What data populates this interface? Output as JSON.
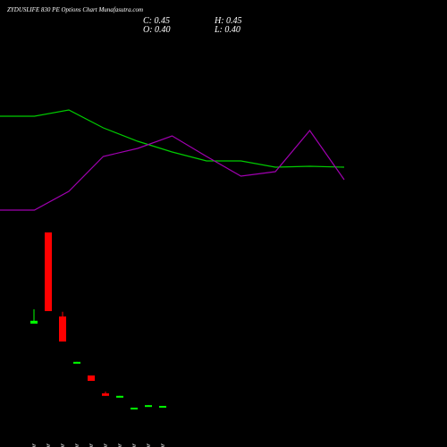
{
  "chart_data": {
    "type": "candlestick",
    "title": "ZYDUSLIFE 830 PE Options Chart Munafasutra.com",
    "ohlc_labels": [
      "C: 0.45",
      "H: 0.45",
      "O: 0.40",
      "L: 0.40"
    ],
    "categories": [
      "01 Apr",
      "02 Apr",
      "03 Apr",
      "07 Apr",
      "08 Apr",
      "09 Apr",
      "17 Apr",
      "22 Apr",
      "23 Apr",
      "24 Apr"
    ],
    "open": [
      2.75,
      5.3,
      2.95,
      1.67,
      1.3,
      0.8,
      0.72,
      0.35,
      0.45,
      0.4
    ],
    "high": [
      3.15,
      5.3,
      3.08,
      1.68,
      1.3,
      0.85,
      0.73,
      0.4,
      0.47,
      0.45
    ],
    "low": [
      2.75,
      3.1,
      2.25,
      1.67,
      1.15,
      0.73,
      0.72,
      0.35,
      0.45,
      0.4
    ],
    "close": [
      2.83,
      3.1,
      2.25,
      1.68,
      1.15,
      0.73,
      0.73,
      0.4,
      0.47,
      0.45
    ],
    "up_color": "#00ff00",
    "down_color": "#ff0000",
    "overlay_series": [
      {
        "color": "#00cc00",
        "values": [
          370,
          370,
          377,
          357,
          342,
          330,
          320,
          320,
          313,
          314,
          313
        ]
      },
      {
        "color": "#a000b0",
        "values": [
          265,
          265,
          286,
          325,
          334,
          348,
          325,
          303,
          308,
          354,
          299
        ]
      }
    ]
  }
}
